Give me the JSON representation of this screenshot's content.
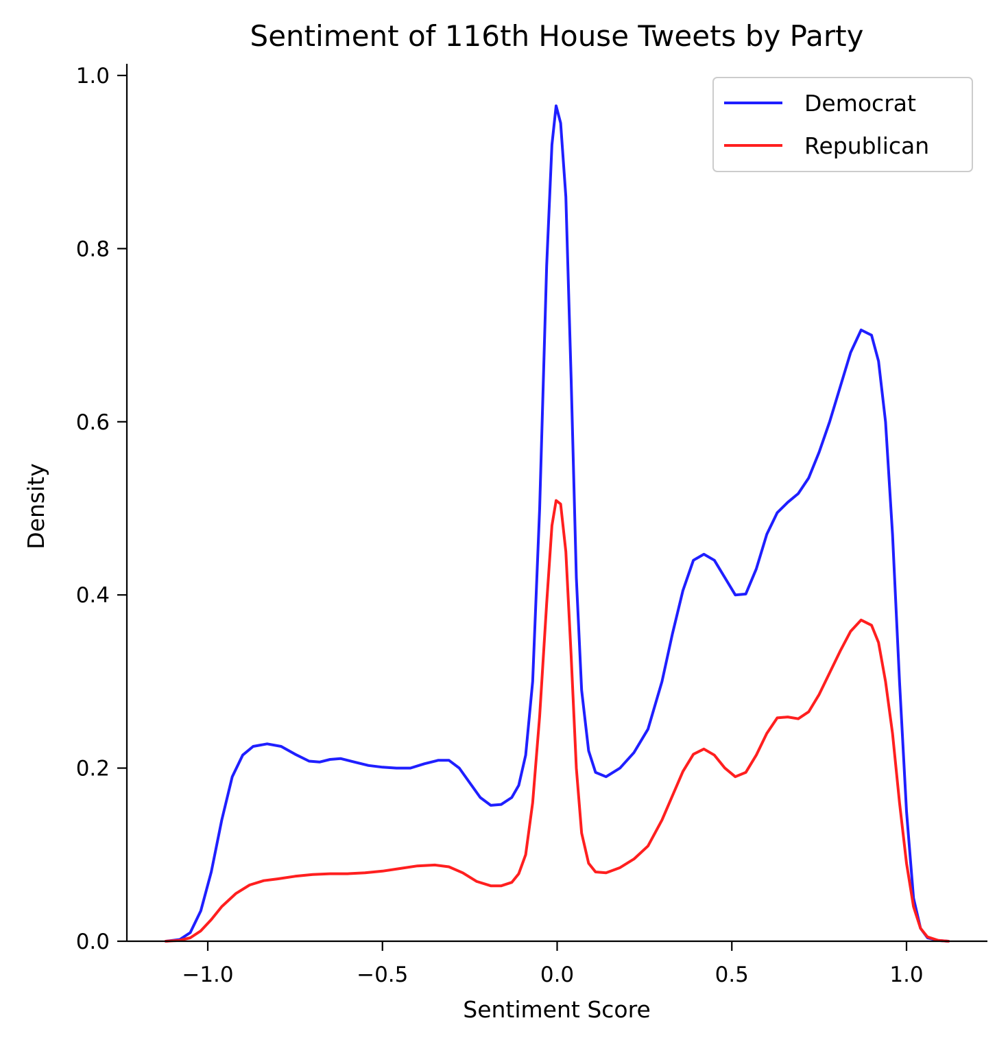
{
  "chart_data": {
    "type": "line",
    "title": "Sentiment of 116th House Tweets by Party",
    "xlabel": "Sentiment Score",
    "ylabel": "Density",
    "xlim": [
      -1.25,
      1.25
    ],
    "ylim": [
      0,
      1.0
    ],
    "xticks": [
      -1.0,
      -0.5,
      0.0,
      0.5,
      1.0
    ],
    "xtick_labels": [
      "−1.0",
      "−0.5",
      "0.0",
      "0.5",
      "1.0"
    ],
    "yticks": [
      0.0,
      0.2,
      0.4,
      0.6,
      0.8,
      1.0
    ],
    "ytick_labels": [
      "0.0",
      "0.2",
      "0.4",
      "0.6",
      "0.8",
      "1.0"
    ],
    "grid": false,
    "legend_position": "top-right",
    "series": [
      {
        "name": "Democrat",
        "color": "#1f1fff",
        "points": [
          [
            -1.12,
            0.0
          ],
          [
            -1.08,
            0.002
          ],
          [
            -1.05,
            0.01
          ],
          [
            -1.02,
            0.035
          ],
          [
            -0.99,
            0.08
          ],
          [
            -0.96,
            0.14
          ],
          [
            -0.93,
            0.19
          ],
          [
            -0.9,
            0.215
          ],
          [
            -0.87,
            0.225
          ],
          [
            -0.83,
            0.228
          ],
          [
            -0.79,
            0.225
          ],
          [
            -0.75,
            0.216
          ],
          [
            -0.71,
            0.208
          ],
          [
            -0.68,
            0.207
          ],
          [
            -0.65,
            0.21
          ],
          [
            -0.62,
            0.211
          ],
          [
            -0.58,
            0.207
          ],
          [
            -0.54,
            0.203
          ],
          [
            -0.5,
            0.201
          ],
          [
            -0.46,
            0.2
          ],
          [
            -0.42,
            0.2
          ],
          [
            -0.38,
            0.205
          ],
          [
            -0.34,
            0.209
          ],
          [
            -0.31,
            0.209
          ],
          [
            -0.28,
            0.2
          ],
          [
            -0.25,
            0.183
          ],
          [
            -0.22,
            0.166
          ],
          [
            -0.19,
            0.157
          ],
          [
            -0.16,
            0.158
          ],
          [
            -0.13,
            0.166
          ],
          [
            -0.11,
            0.18
          ],
          [
            -0.09,
            0.215
          ],
          [
            -0.07,
            0.3
          ],
          [
            -0.05,
            0.5
          ],
          [
            -0.03,
            0.78
          ],
          [
            -0.015,
            0.92
          ],
          [
            -0.003,
            0.965
          ],
          [
            0.01,
            0.945
          ],
          [
            0.025,
            0.86
          ],
          [
            0.04,
            0.65
          ],
          [
            0.055,
            0.42
          ],
          [
            0.07,
            0.29
          ],
          [
            0.09,
            0.22
          ],
          [
            0.11,
            0.195
          ],
          [
            0.14,
            0.19
          ],
          [
            0.18,
            0.2
          ],
          [
            0.22,
            0.218
          ],
          [
            0.26,
            0.245
          ],
          [
            0.3,
            0.3
          ],
          [
            0.33,
            0.355
          ],
          [
            0.36,
            0.405
          ],
          [
            0.39,
            0.44
          ],
          [
            0.42,
            0.447
          ],
          [
            0.45,
            0.44
          ],
          [
            0.48,
            0.42
          ],
          [
            0.51,
            0.4
          ],
          [
            0.54,
            0.401
          ],
          [
            0.57,
            0.43
          ],
          [
            0.6,
            0.47
          ],
          [
            0.63,
            0.495
          ],
          [
            0.66,
            0.507
          ],
          [
            0.69,
            0.517
          ],
          [
            0.72,
            0.535
          ],
          [
            0.75,
            0.565
          ],
          [
            0.78,
            0.6
          ],
          [
            0.81,
            0.64
          ],
          [
            0.84,
            0.68
          ],
          [
            0.87,
            0.706
          ],
          [
            0.9,
            0.7
          ],
          [
            0.92,
            0.67
          ],
          [
            0.94,
            0.6
          ],
          [
            0.96,
            0.47
          ],
          [
            0.98,
            0.3
          ],
          [
            1.0,
            0.15
          ],
          [
            1.02,
            0.05
          ],
          [
            1.04,
            0.015
          ],
          [
            1.06,
            0.004
          ],
          [
            1.09,
            0.001
          ],
          [
            1.12,
            0.0
          ]
        ]
      },
      {
        "name": "Republican",
        "color": "#ff1f1f",
        "points": [
          [
            -1.12,
            0.0
          ],
          [
            -1.08,
            0.001
          ],
          [
            -1.05,
            0.004
          ],
          [
            -1.02,
            0.012
          ],
          [
            -0.99,
            0.025
          ],
          [
            -0.96,
            0.04
          ],
          [
            -0.92,
            0.055
          ],
          [
            -0.88,
            0.065
          ],
          [
            -0.84,
            0.07
          ],
          [
            -0.8,
            0.072
          ],
          [
            -0.75,
            0.075
          ],
          [
            -0.7,
            0.077
          ],
          [
            -0.65,
            0.078
          ],
          [
            -0.6,
            0.078
          ],
          [
            -0.55,
            0.079
          ],
          [
            -0.5,
            0.081
          ],
          [
            -0.45,
            0.084
          ],
          [
            -0.4,
            0.087
          ],
          [
            -0.35,
            0.088
          ],
          [
            -0.31,
            0.086
          ],
          [
            -0.27,
            0.079
          ],
          [
            -0.23,
            0.069
          ],
          [
            -0.19,
            0.064
          ],
          [
            -0.16,
            0.064
          ],
          [
            -0.13,
            0.068
          ],
          [
            -0.11,
            0.078
          ],
          [
            -0.09,
            0.1
          ],
          [
            -0.07,
            0.16
          ],
          [
            -0.05,
            0.26
          ],
          [
            -0.03,
            0.39
          ],
          [
            -0.015,
            0.48
          ],
          [
            -0.003,
            0.509
          ],
          [
            0.01,
            0.505
          ],
          [
            0.025,
            0.45
          ],
          [
            0.04,
            0.33
          ],
          [
            0.055,
            0.2
          ],
          [
            0.07,
            0.125
          ],
          [
            0.09,
            0.09
          ],
          [
            0.11,
            0.08
          ],
          [
            0.14,
            0.079
          ],
          [
            0.18,
            0.085
          ],
          [
            0.22,
            0.095
          ],
          [
            0.26,
            0.11
          ],
          [
            0.3,
            0.14
          ],
          [
            0.33,
            0.168
          ],
          [
            0.36,
            0.196
          ],
          [
            0.39,
            0.216
          ],
          [
            0.42,
            0.222
          ],
          [
            0.45,
            0.215
          ],
          [
            0.48,
            0.2
          ],
          [
            0.51,
            0.19
          ],
          [
            0.54,
            0.195
          ],
          [
            0.57,
            0.215
          ],
          [
            0.6,
            0.24
          ],
          [
            0.63,
            0.258
          ],
          [
            0.66,
            0.259
          ],
          [
            0.69,
            0.257
          ],
          [
            0.72,
            0.265
          ],
          [
            0.75,
            0.285
          ],
          [
            0.78,
            0.31
          ],
          [
            0.81,
            0.335
          ],
          [
            0.84,
            0.358
          ],
          [
            0.87,
            0.371
          ],
          [
            0.9,
            0.365
          ],
          [
            0.92,
            0.345
          ],
          [
            0.94,
            0.3
          ],
          [
            0.96,
            0.24
          ],
          [
            0.98,
            0.16
          ],
          [
            1.0,
            0.09
          ],
          [
            1.02,
            0.04
          ],
          [
            1.04,
            0.015
          ],
          [
            1.06,
            0.005
          ],
          [
            1.09,
            0.001
          ],
          [
            1.12,
            0.0
          ]
        ]
      }
    ]
  }
}
